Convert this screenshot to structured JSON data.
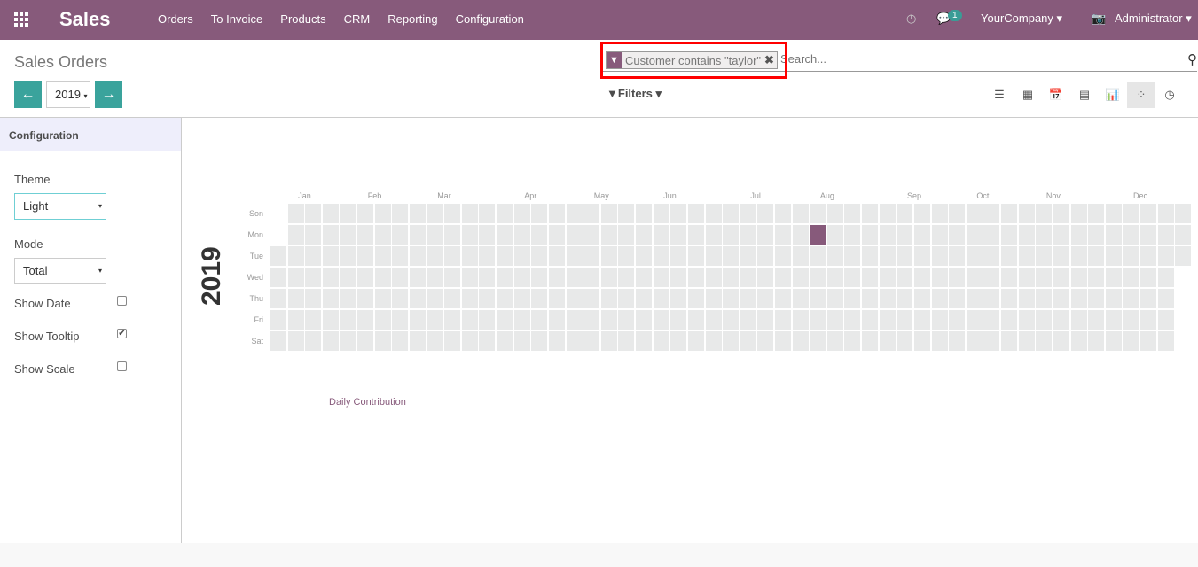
{
  "topbar": {
    "app": "Sales",
    "menu": [
      "Orders",
      "To Invoice",
      "Products",
      "CRM",
      "Reporting",
      "Configuration"
    ],
    "messages_count": "1",
    "company": "YourCompany",
    "user": "Administrator"
  },
  "control": {
    "title": "Sales Orders",
    "year": "2019",
    "search": {
      "facet": "Customer contains \"taylor\"",
      "placeholder": "Search..."
    },
    "filters_label": "Filters",
    "views": [
      "list-icon",
      "kanban-icon",
      "calendar-icon",
      "pivot-icon",
      "graph-icon",
      "heatmap-icon",
      "activity-icon"
    ],
    "active_view": "heatmap-icon"
  },
  "sidebar": {
    "header": "Configuration",
    "theme_label": "Theme",
    "theme": "Light",
    "mode_label": "Mode",
    "mode": "Total",
    "options": [
      {
        "label": "Show Date",
        "checked": false
      },
      {
        "label": "Show Tooltip",
        "checked": true
      },
      {
        "label": "Show Scale",
        "checked": false
      }
    ]
  },
  "chart_data": {
    "type": "heatmap",
    "year": "2019",
    "days": [
      "Son",
      "Mon",
      "Tue",
      "Wed",
      "Thu",
      "Fri",
      "Sat"
    ],
    "months": [
      "Jan",
      "Feb",
      "Mar",
      "Apr",
      "May",
      "Jun",
      "Jul",
      "Aug",
      "Sep",
      "Oct",
      "Nov",
      "Dec"
    ],
    "active_dates": [
      "2019-08-05"
    ],
    "empty_color": "#e8e9e9",
    "active_color": "#875a7b",
    "legend": "Daily Contribution"
  }
}
